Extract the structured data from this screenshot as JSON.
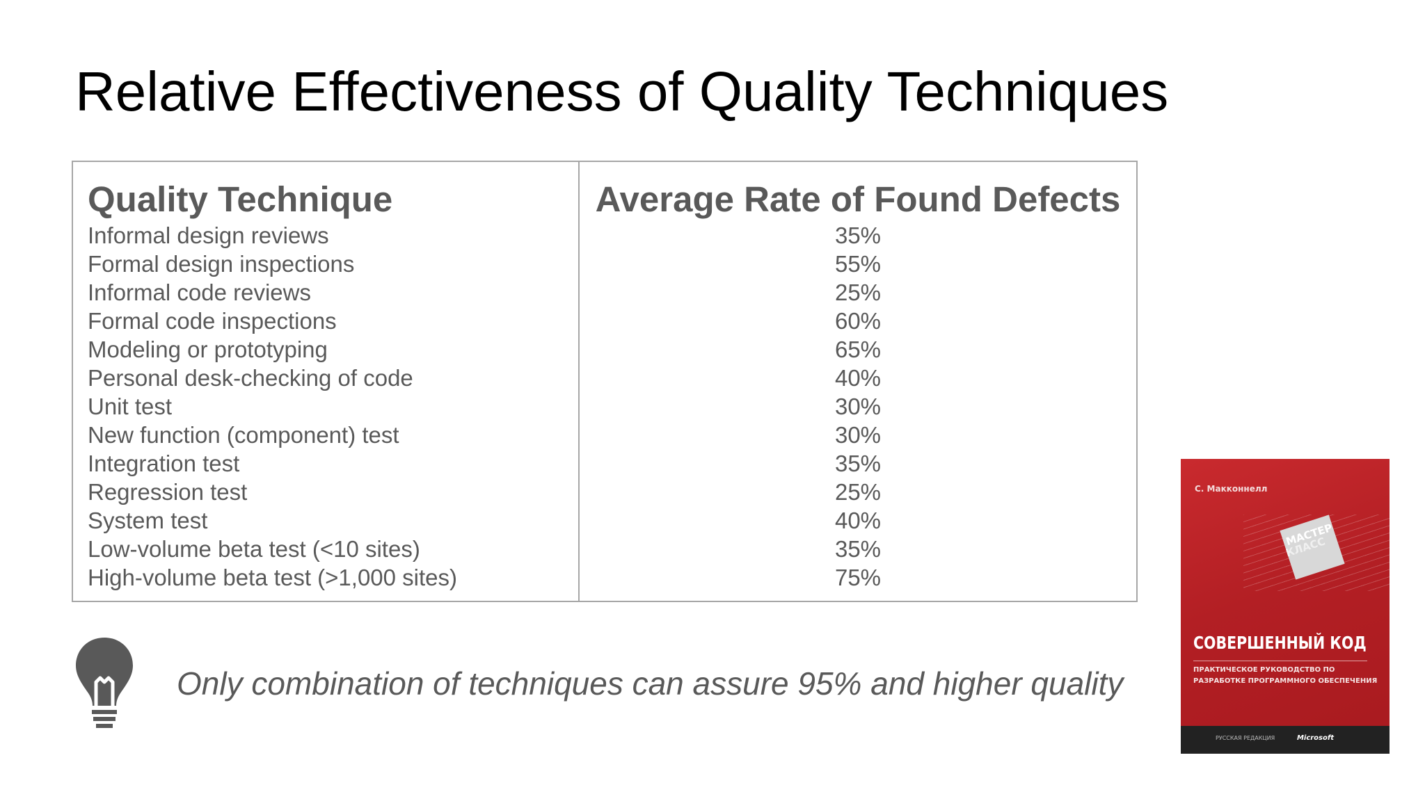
{
  "slide": {
    "title": "Relative Effectiveness of Quality Techniques",
    "conclusion": "Only combination of techniques can assure 95% and higher quality"
  },
  "table": {
    "headers": [
      "Quality Technique",
      "Average Rate of Found Defects"
    ],
    "rows": [
      {
        "technique": "Informal design reviews",
        "rate": "35%"
      },
      {
        "technique": "Formal design inspections",
        "rate": "55%"
      },
      {
        "technique": "Informal code reviews",
        "rate": "25%"
      },
      {
        "technique": "Formal code inspections",
        "rate": "60%"
      },
      {
        "technique": "Modeling or prototyping",
        "rate": "65%"
      },
      {
        "technique": "Personal desk-checking of code",
        "rate": "40%"
      },
      {
        "technique": "Unit test",
        "rate": "30%"
      },
      {
        "technique": "New function (component) test",
        "rate": "30%"
      },
      {
        "technique": "Integration test",
        "rate": "35%"
      },
      {
        "technique": "Regression test",
        "rate": "25%"
      },
      {
        "technique": "System test",
        "rate": "40%"
      },
      {
        "technique": "Low-volume beta test (<10 sites)",
        "rate": "35%"
      },
      {
        "technique": "High-volume beta test (>1,000 sites)",
        "rate": "75%"
      }
    ]
  },
  "icons": {
    "bulb": "lightbulb-icon"
  },
  "book": {
    "author": "С. Макконнелл",
    "badge_line1": "МАСТЕР",
    "badge_line2": "КЛАСС",
    "title": "СОВЕРШЕННЫЙ КОД",
    "subtitle": "ПРАКТИЧЕСКОЕ РУКОВОДСТВО ПО РАЗРАБОТКЕ ПРОГРАММНОГО ОБЕСПЕЧЕНИЯ",
    "publisher_left": "РУССКАЯ РЕДАКЦИЯ",
    "publisher_right": "Microsoft"
  },
  "colors": {
    "text_gray": "#595959",
    "border": "#a6a6a6",
    "icon": "#595959",
    "book_red": "#b31f24"
  }
}
